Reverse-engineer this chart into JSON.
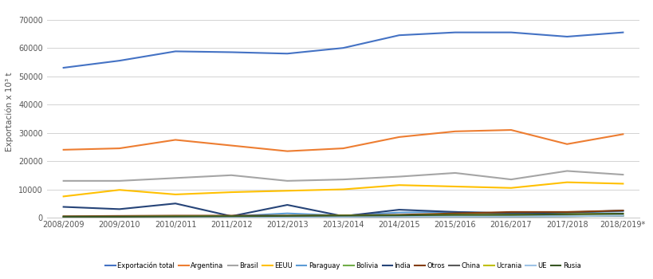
{
  "campaigns": [
    "2008/2009",
    "2009/2010",
    "2010/2011",
    "2011/2012",
    "2012/2013",
    "2013/2014",
    "2014/2015",
    "2015/2016",
    "2016/2017",
    "2017/2018",
    "2018/2019*"
  ],
  "series": {
    "Exportación total": [
      53000,
      55500,
      58800,
      58500,
      58000,
      60000,
      64500,
      65500,
      65500,
      64000,
      65500
    ],
    "Argentina": [
      24000,
      24500,
      27500,
      25500,
      23500,
      24500,
      28500,
      30500,
      31000,
      26000,
      29500
    ],
    "Brasil": [
      13000,
      13000,
      14000,
      15000,
      13000,
      13500,
      14500,
      15800,
      13500,
      16500,
      15200
    ],
    "EEUU": [
      7500,
      9800,
      8200,
      9000,
      9500,
      10000,
      11500,
      11000,
      10500,
      12500,
      12000
    ],
    "Paraguay": [
      300,
      300,
      500,
      500,
      1500,
      700,
      1800,
      2000,
      1500,
      1800,
      2200
    ],
    "Bolivia": [
      200,
      200,
      300,
      300,
      400,
      400,
      500,
      500,
      400,
      500,
      600
    ],
    "India": [
      3800,
      3000,
      5000,
      500,
      4500,
      500,
      2800,
      2000,
      1500,
      1800,
      2500
    ],
    "Otros": [
      500,
      600,
      700,
      700,
      700,
      800,
      1000,
      1500,
      2000,
      2000,
      2500
    ],
    "China": [
      300,
      300,
      300,
      300,
      300,
      300,
      400,
      400,
      400,
      500,
      700
    ],
    "Ucrania": [
      300,
      300,
      400,
      500,
      600,
      700,
      800,
      1000,
      1000,
      1200,
      1400
    ],
    "UE": [
      300,
      300,
      300,
      300,
      300,
      300,
      400,
      400,
      400,
      500,
      700
    ],
    "Rusia": [
      300,
      300,
      400,
      500,
      600,
      700,
      800,
      1000,
      1000,
      1200,
      1400
    ]
  },
  "colors": {
    "Exportación total": "#4472C4",
    "Argentina": "#ED7D31",
    "Brasil": "#A5A5A5",
    "EEUU": "#FFC000",
    "Paraguay": "#5B9BD5",
    "Bolivia": "#70AD47",
    "India": "#264478",
    "Otros": "#843C0C",
    "China": "#595959",
    "Ucrania": "#BFBF00",
    "UE": "#9DC3E6",
    "Rusia": "#375623"
  },
  "legend_order": [
    "Exportación total",
    "Argentina",
    "Brasil",
    "EEUU",
    "Paraguay",
    "Bolivia",
    "India",
    "Otros",
    "China",
    "Ucrania",
    "UE",
    "Rusia"
  ],
  "ylabel": "Exportación x 10³ t",
  "ylim": [
    0,
    75000
  ],
  "yticks": [
    0,
    10000,
    20000,
    30000,
    40000,
    50000,
    60000,
    70000
  ],
  "background_color": "#ffffff",
  "grid_color": "#d3d3d3"
}
